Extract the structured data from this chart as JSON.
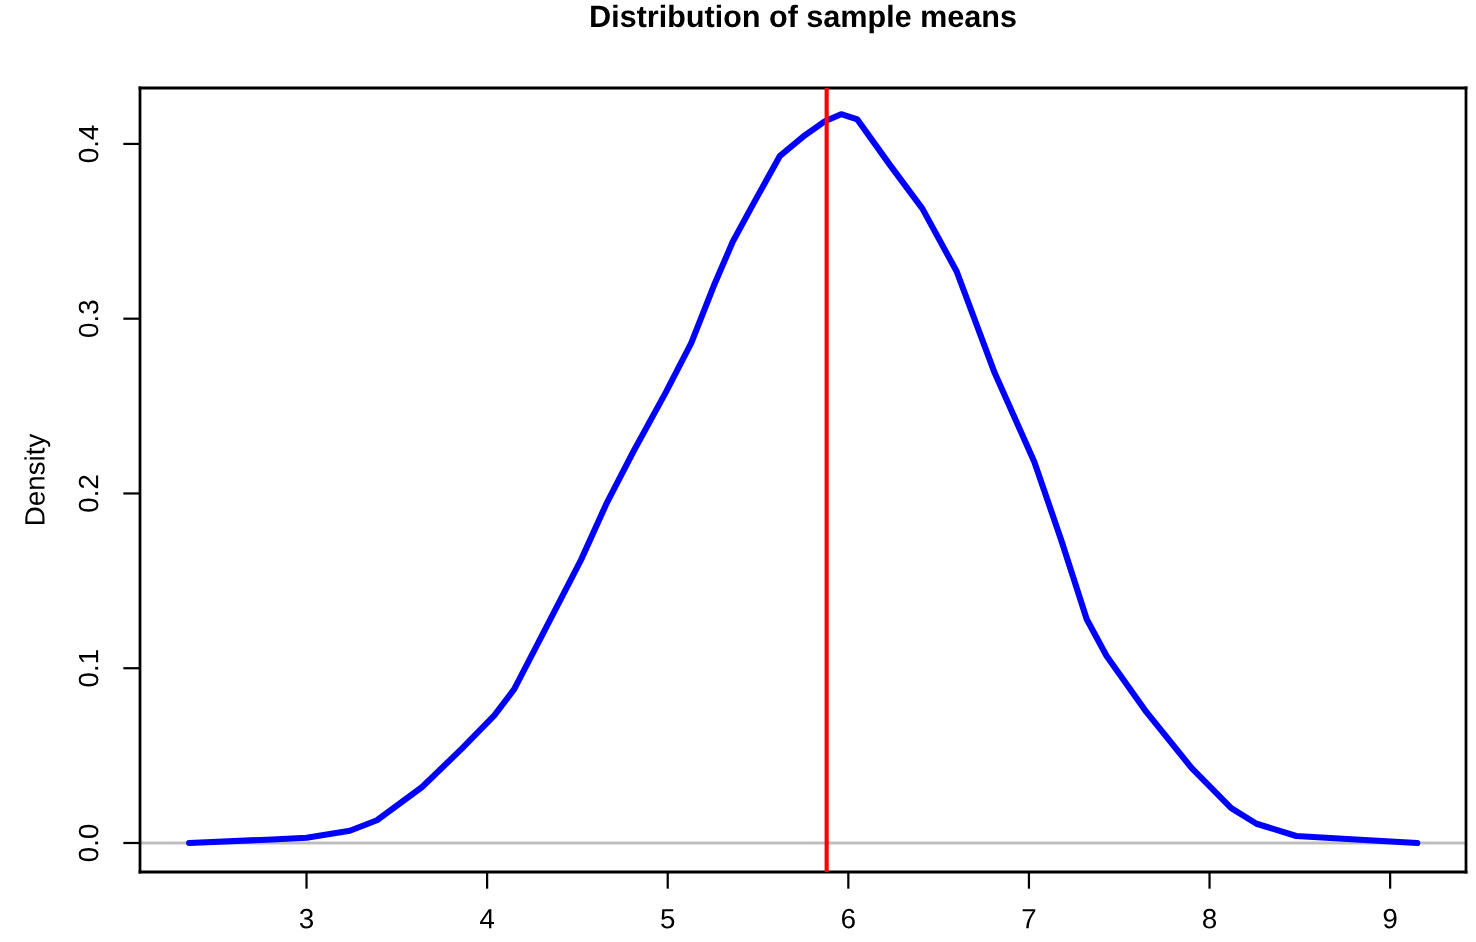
{
  "chart_data": {
    "type": "line",
    "title": "Distribution of sample means",
    "ylabel": "Density",
    "xlim": [
      2.078,
      9.42
    ],
    "ylim": [
      -0.0166,
      0.432
    ],
    "xticks": [
      3,
      4,
      5,
      6,
      7,
      8,
      9
    ],
    "yticks": [
      {
        "value": 0,
        "label": "0.0"
      },
      0.1,
      0.2,
      0.3,
      0.4
    ],
    "grid": false,
    "legend": false,
    "marker": "none",
    "line_style": "solid",
    "series": [
      {
        "color": "#0000ff",
        "x": [
          2.35,
          2.81,
          3.0,
          3.24,
          3.39,
          3.64,
          3.86,
          4.04,
          4.15,
          4.33,
          4.52,
          4.66,
          4.81,
          4.99,
          5.13,
          5.26,
          5.36,
          5.47,
          5.62,
          5.76,
          5.87,
          5.96,
          6.05,
          6.23,
          6.41,
          6.6,
          6.81,
          7.03,
          7.18,
          7.32,
          7.43,
          7.65,
          7.9,
          8.12,
          8.26,
          8.48,
          8.81,
          9.15
        ],
        "values": [
          0.0,
          0.002,
          0.003,
          0.007,
          0.013,
          0.032,
          0.054,
          0.073,
          0.088,
          0.124,
          0.162,
          0.194,
          0.224,
          0.258,
          0.286,
          0.32,
          0.344,
          0.365,
          0.393,
          0.405,
          0.413,
          0.417,
          0.414,
          0.388,
          0.363,
          0.327,
          0.269,
          0.218,
          0.173,
          0.128,
          0.107,
          0.075,
          0.043,
          0.02,
          0.011,
          0.004,
          0.002,
          0.0
        ]
      }
    ],
    "ref_lines": [
      {
        "axis": "y",
        "value": 0,
        "color": "#bebebe"
      },
      {
        "axis": "x",
        "value": 5.88,
        "color": "#ff0000"
      }
    ]
  }
}
